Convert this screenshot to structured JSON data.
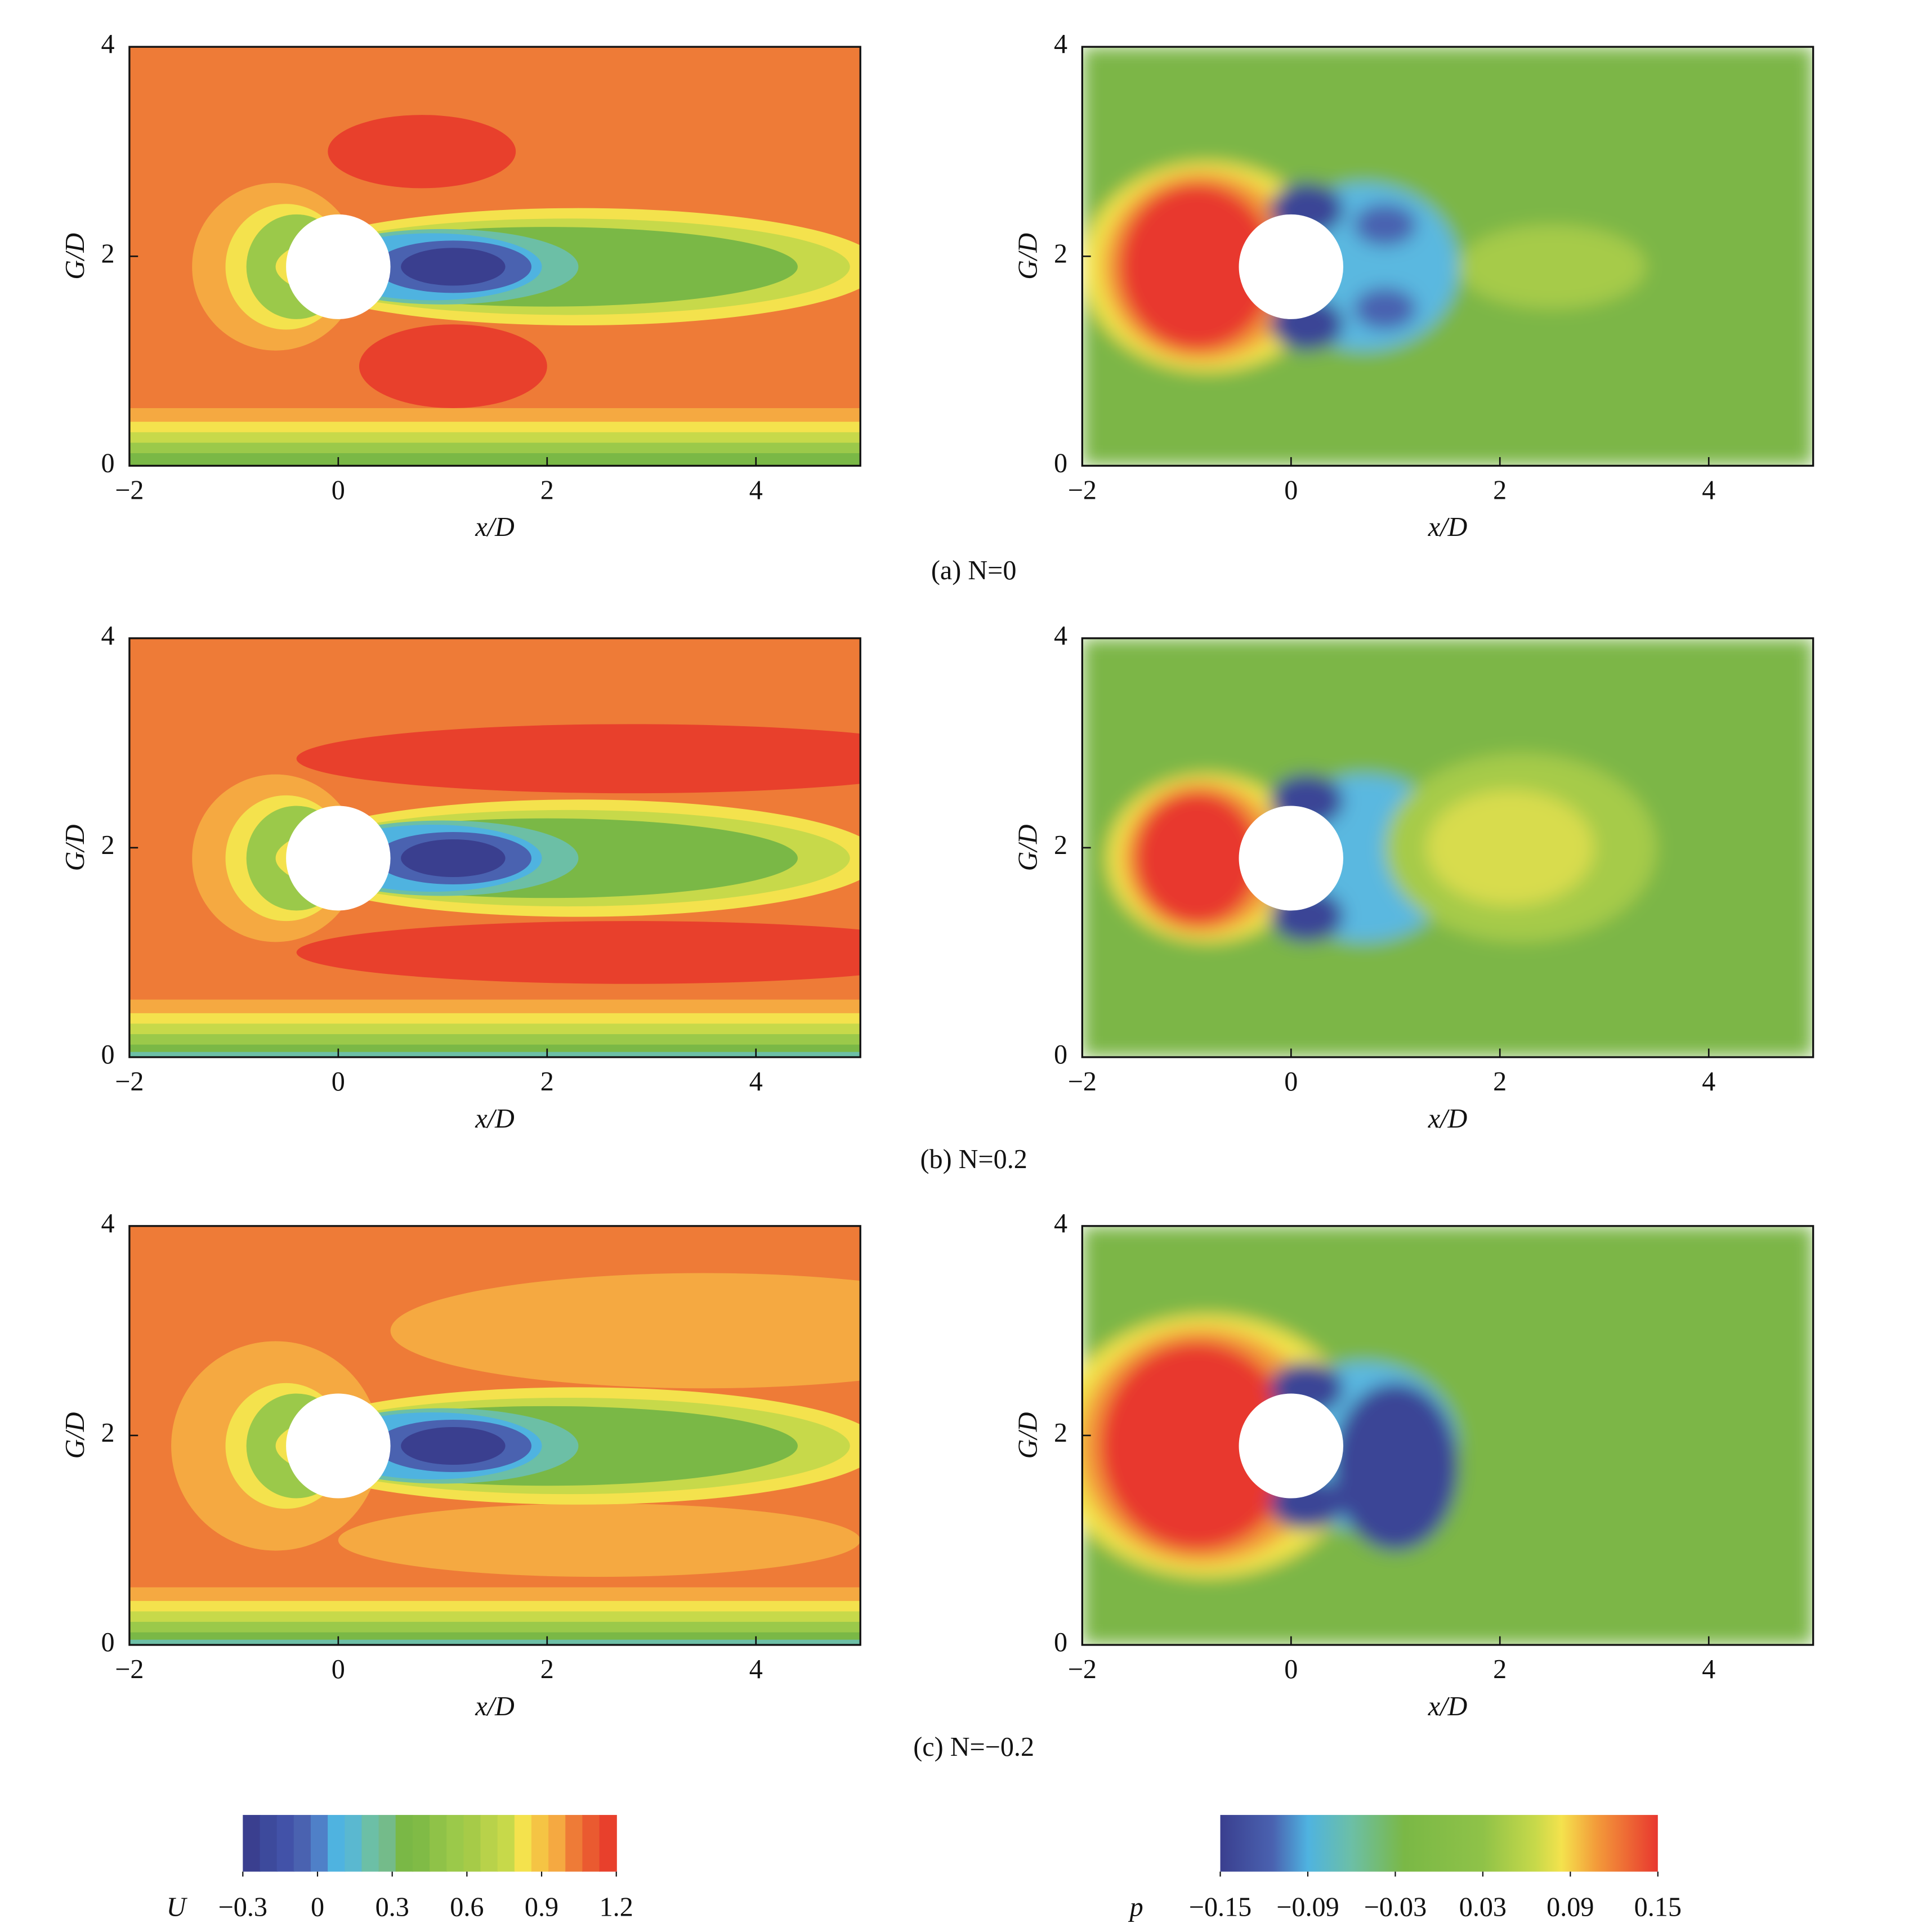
{
  "chart_data": [
    {
      "type": "contour",
      "xlabel": "x/D",
      "ylabel": "G/D",
      "xlim": [
        -2,
        5
      ],
      "ylim": [
        0,
        4
      ],
      "xticks": [
        {
          "value": -2,
          "label": "−2"
        },
        0,
        2,
        4
      ],
      "yticks": [
        0,
        2,
        4
      ]
    },
    {
      "type": "contour",
      "xlabel": "x/D",
      "ylabel": "G/D",
      "xlim": [
        -2,
        5
      ],
      "ylim": [
        0,
        4
      ],
      "xticks": [
        {
          "value": -2,
          "label": "−2"
        },
        0,
        2,
        4
      ],
      "yticks": [
        0,
        2,
        4
      ]
    },
    {
      "type": "contour",
      "xlabel": "x/D",
      "ylabel": "G/D",
      "xlim": [
        -2,
        5
      ],
      "ylim": [
        0,
        4
      ],
      "xticks": [
        {
          "value": -2,
          "label": "−2"
        },
        0,
        2,
        4
      ],
      "yticks": [
        0,
        2,
        4
      ]
    },
    {
      "type": "contour",
      "xlabel": "x/D",
      "ylabel": "G/D",
      "xlim": [
        -2,
        5
      ],
      "ylim": [
        0,
        4
      ],
      "xticks": [
        {
          "value": -2,
          "label": "−2"
        },
        0,
        2,
        4
      ],
      "yticks": [
        0,
        2,
        4
      ]
    },
    {
      "type": "contour",
      "xlabel": "x/D",
      "ylabel": "G/D",
      "xlim": [
        -2,
        5
      ],
      "ylim": [
        0,
        4
      ],
      "xticks": [
        {
          "value": -2,
          "label": "−2"
        },
        0,
        2,
        4
      ],
      "yticks": [
        0,
        2,
        4
      ]
    },
    {
      "type": "contour",
      "xlabel": "x/D",
      "ylabel": "G/D",
      "xlim": [
        -2,
        5
      ],
      "ylim": [
        0,
        4
      ],
      "xticks": [
        {
          "value": -2,
          "label": "−2"
        },
        0,
        2,
        4
      ],
      "yticks": [
        0,
        2,
        4
      ]
    }
  ],
  "figure": {
    "captions": [
      "(a) N=0",
      "(b) N=0.2",
      "(c) N=−0.2"
    ],
    "colorbars": [
      {
        "label": "U",
        "lim": [
          -0.3,
          1.2
        ],
        "ticks": [
          {
            "value": -0.3,
            "label": "−0.3"
          },
          0,
          0.3,
          0.6,
          0.9,
          1.2
        ]
      },
      {
        "label": "p",
        "lim": [
          -0.15,
          0.15
        ],
        "ticks": [
          {
            "value": -0.15,
            "label": "−0.15"
          },
          {
            "value": -0.09,
            "label": "−0.09"
          },
          {
            "value": -0.03,
            "label": "−0.03"
          },
          0.03,
          0.09,
          0.15
        ]
      }
    ]
  }
}
